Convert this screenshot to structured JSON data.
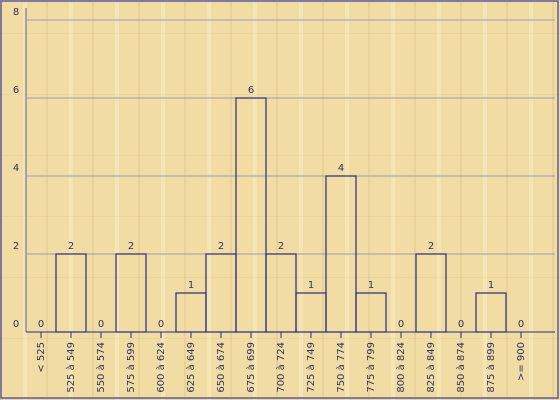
{
  "chart_data": {
    "type": "bar",
    "categories": [
      "< 525",
      "525 à 549",
      "550 à 574",
      "575 à 599",
      "600 à 624",
      "625 à 649",
      "650 à 674",
      "675 à 699",
      "700 à 724",
      "725 à 749",
      "750 à 774",
      "775 à 799",
      "800 à 824",
      "825 à 849",
      "850 à 874",
      "875 à 899",
      ">= 900"
    ],
    "values": [
      0,
      2,
      0,
      2,
      0,
      1,
      2,
      6,
      2,
      1,
      4,
      1,
      0,
      2,
      0,
      1,
      0
    ],
    "color": "#2a2a80",
    "ylim": [
      0,
      8
    ],
    "yticks": [
      0,
      2,
      4,
      6,
      8
    ],
    "grid": true
  }
}
